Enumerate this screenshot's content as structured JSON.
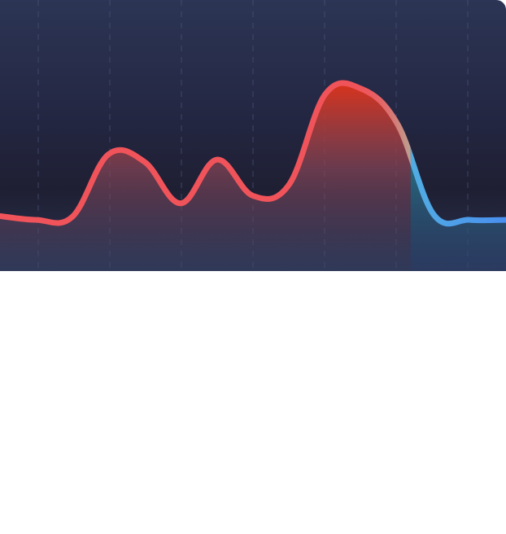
{
  "chart_data": {
    "type": "area",
    "title": "",
    "xlabel": "",
    "ylabel": "",
    "x": [
      0,
      0.5,
      1,
      1.5,
      2,
      2.5,
      3,
      3.5,
      4,
      4.5,
      5,
      5.5,
      6,
      6.5,
      7
    ],
    "series": [
      {
        "values": [
          0.73,
          0.68,
          0.72,
          1.55,
          1.45,
          0.9,
          1.48,
          1.0,
          1.15,
          2.35,
          2.42,
          1.95,
          0.75,
          0.68,
          0.68
        ]
      }
    ],
    "highlight_start_x": 5.68,
    "ylim": [
      0,
      3.6
    ],
    "xlim": [
      0,
      7
    ],
    "grid": "vertical-dashed",
    "legend": "none",
    "colors": {
      "line": "#f0545a",
      "line_highlight_start": "#5fe6c8",
      "line_highlight_end": "#4a8ff0",
      "fill_top": "#d9331c",
      "fill_highlight": "#28a89e",
      "grid": "#4a5478"
    }
  }
}
